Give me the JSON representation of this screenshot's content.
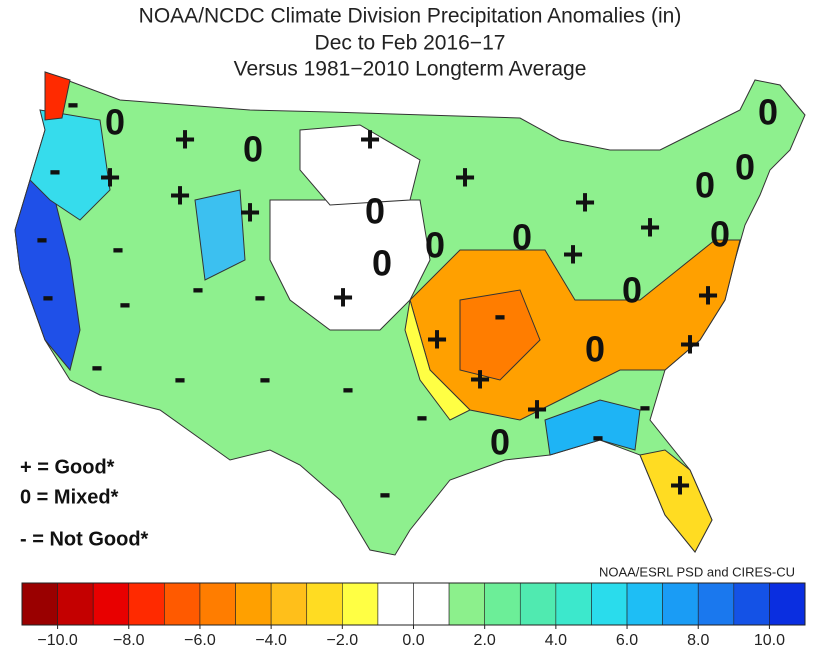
{
  "header": {
    "title": "NOAA/NCDC Climate Division Precipitation Anomalies (in)",
    "period": "Dec to Feb 2016−17",
    "baseline": "Versus 1981−2010 Longterm Average"
  },
  "symbols": [
    "-",
    "0",
    "+",
    "0",
    "+",
    "0",
    "0",
    "0",
    "-",
    "+",
    "+",
    "+",
    "0",
    "+",
    "+",
    "+",
    "0",
    "-",
    "-",
    "0",
    "0",
    "0",
    "+",
    "-",
    "-",
    "-",
    "-",
    "+",
    "0",
    "+",
    "-",
    "+",
    "0",
    "+",
    "-",
    "-",
    "-",
    "-",
    "+",
    "-",
    "+",
    "-",
    "-",
    "0",
    "+",
    "-"
  ],
  "legend": [
    "+ = Good*",
    "0 = Mixed*",
    "- = Not Good*"
  ],
  "credit": "NOAA/ESRL PSD and CIRES-CU",
  "colorbar": {
    "range": [
      -11,
      11
    ],
    "colors": [
      "#9a0000",
      "#c40000",
      "#e80000",
      "#ff2a00",
      "#ff5a00",
      "#ff7d00",
      "#ffa000",
      "#ffbf1a",
      "#ffdc22",
      "#ffff44",
      "#ffffff",
      "#ffffff",
      "#8cf08c",
      "#6cee98",
      "#50eab0",
      "#3ce8cc",
      "#2adcec",
      "#1ebef5",
      "#1a9cf5",
      "#1a78ee",
      "#1452e6",
      "#0a2ee0"
    ],
    "ticks": [
      {
        "value": -10,
        "label": "−10.0"
      },
      {
        "value": -8,
        "label": "−8.0"
      },
      {
        "value": -6,
        "label": "−6.0"
      },
      {
        "value": -4,
        "label": "−4.0"
      },
      {
        "value": -2,
        "label": "−2.0"
      },
      {
        "value": 0,
        "label": "0.0"
      },
      {
        "value": 2,
        "label": "2.0"
      },
      {
        "value": 4,
        "label": "4.0"
      },
      {
        "value": 6,
        "label": "6.0"
      },
      {
        "value": 8,
        "label": "8.0"
      },
      {
        "value": 10,
        "label": "10.0"
      }
    ]
  }
}
